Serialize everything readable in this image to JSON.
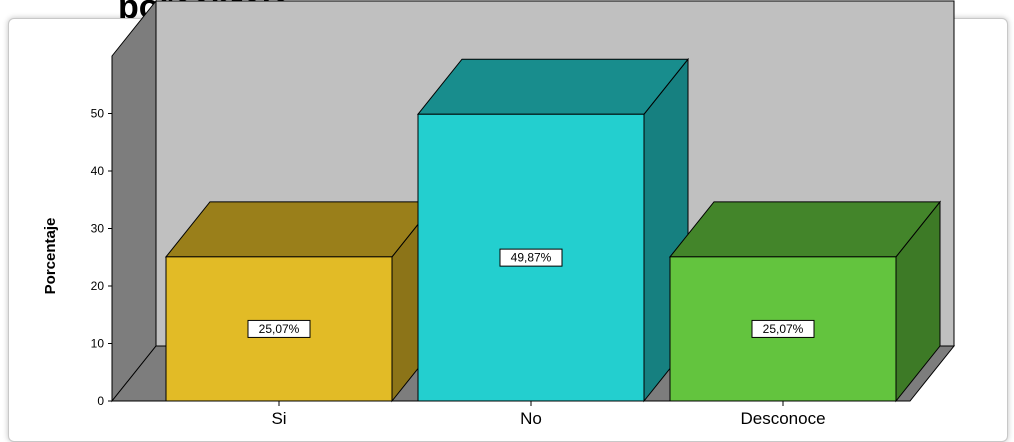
{
  "heading": "porcentaje",
  "chart_data": {
    "type": "bar",
    "categories": [
      "Si",
      "No",
      "Desconoce"
    ],
    "values": [
      25.07,
      49.87,
      25.07
    ],
    "data_labels": [
      "25,07%",
      "49,87%",
      "25,07%"
    ],
    "colors": [
      "#e2bb26",
      "#23cfcf",
      "#63c43e"
    ],
    "ylabel": "Porcentaje",
    "yticks": [
      0,
      10,
      20,
      30,
      40,
      50
    ],
    "ylim": [
      0,
      60
    ],
    "style": "3d",
    "grid": false
  }
}
